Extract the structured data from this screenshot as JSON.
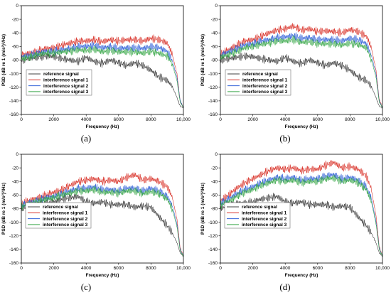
{
  "chart_data": [
    {
      "type": "line",
      "panel_label": "(a)",
      "xlabel": "Frequency (Hz)",
      "ylabel": "PSD (dB re 1 (m/s²)²/Hz)",
      "xlim": [
        0,
        10000
      ],
      "ylim": [
        -160,
        0
      ],
      "xticks": [
        "0",
        "2000",
        "4000",
        "6000",
        "8000",
        "10,000"
      ],
      "yticks": [
        "0",
        "-20",
        "-40",
        "-60",
        "-80",
        "-100",
        "-120",
        "-140",
        "-160"
      ],
      "legend_position": "left-middle",
      "series": [
        {
          "name": "reference signal",
          "color": "#404040",
          "x": [
            0,
            500,
            1000,
            1500,
            2000,
            2500,
            3000,
            3500,
            4000,
            4500,
            5000,
            5500,
            6000,
            6500,
            7000,
            7500,
            8000,
            8500,
            9000,
            9300,
            9600,
            9800,
            10000
          ],
          "y": [
            -80,
            -78,
            -76,
            -74,
            -75,
            -78,
            -80,
            -82,
            -76,
            -82,
            -85,
            -80,
            -84,
            -88,
            -84,
            -88,
            -95,
            -105,
            -110,
            -118,
            -135,
            -148,
            -150
          ]
        },
        {
          "name": "interference signal 1",
          "color": "#d9342b",
          "x": [
            0,
            500,
            1000,
            1500,
            2000,
            2500,
            3000,
            3500,
            4000,
            4500,
            5000,
            5500,
            6000,
            6500,
            7000,
            7500,
            8000,
            8500,
            9000,
            9300,
            9600,
            9800,
            10000
          ],
          "y": [
            -72,
            -70,
            -67,
            -63,
            -62,
            -58,
            -55,
            -52,
            -52,
            -50,
            -53,
            -50,
            -52,
            -50,
            -50,
            -52,
            -48,
            -50,
            -55,
            -70,
            -100,
            -140,
            -150
          ]
        },
        {
          "name": "interference signal 2",
          "color": "#3060d8",
          "x": [
            0,
            500,
            1000,
            1500,
            2000,
            2500,
            3000,
            3500,
            4000,
            4500,
            5000,
            5500,
            6000,
            6500,
            7000,
            7500,
            8000,
            8500,
            9000,
            9300,
            9600,
            9800,
            10000
          ],
          "y": [
            -75,
            -73,
            -70,
            -67,
            -67,
            -65,
            -63,
            -60,
            -60,
            -58,
            -62,
            -60,
            -63,
            -62,
            -62,
            -63,
            -60,
            -62,
            -67,
            -80,
            -105,
            -140,
            -150
          ]
        },
        {
          "name": "interference signal 3",
          "color": "#3aa84a",
          "x": [
            0,
            500,
            1000,
            1500,
            2000,
            2500,
            3000,
            3500,
            4000,
            4500,
            5000,
            5500,
            6000,
            6500,
            7000,
            7500,
            8000,
            8500,
            9000,
            9300,
            9600,
            9800,
            10000
          ],
          "y": [
            -78,
            -76,
            -72,
            -70,
            -70,
            -68,
            -67,
            -65,
            -66,
            -64,
            -68,
            -66,
            -68,
            -68,
            -68,
            -70,
            -67,
            -70,
            -74,
            -85,
            -110,
            -142,
            -150
          ]
        }
      ]
    },
    {
      "type": "line",
      "panel_label": "(b)",
      "xlabel": "Frequency (Hz)",
      "ylabel": "PSD (dB re 1 (m/s²)²/Hz)",
      "xlim": [
        0,
        10000
      ],
      "ylim": [
        -160,
        0
      ],
      "xticks": [
        "0",
        "2000",
        "4000",
        "6000",
        "8000",
        "10,000"
      ],
      "yticks": [
        "0",
        "-20",
        "-40",
        "-60",
        "-80",
        "-100",
        "-120",
        "-140",
        "-160"
      ],
      "legend_position": "left-middle",
      "series": [
        {
          "name": "reference signal",
          "color": "#404040",
          "x": [
            0,
            500,
            1000,
            1500,
            2000,
            2500,
            3000,
            3500,
            4000,
            4500,
            5000,
            5500,
            6000,
            6500,
            7000,
            7500,
            8000,
            8500,
            9000,
            9300,
            9600,
            9800,
            10000
          ],
          "y": [
            -80,
            -78,
            -76,
            -74,
            -75,
            -78,
            -80,
            -82,
            -76,
            -82,
            -85,
            -80,
            -84,
            -88,
            -84,
            -88,
            -95,
            -105,
            -110,
            -118,
            -135,
            -148,
            -150
          ]
        },
        {
          "name": "interference signal 1",
          "color": "#d9342b",
          "x": [
            0,
            500,
            1000,
            1500,
            2000,
            2500,
            3000,
            3500,
            4000,
            4500,
            5000,
            5500,
            6000,
            6500,
            7000,
            7500,
            8000,
            8500,
            9000,
            9300,
            9600,
            9800,
            10000
          ],
          "y": [
            -70,
            -65,
            -58,
            -52,
            -50,
            -45,
            -40,
            -36,
            -34,
            -30,
            -36,
            -34,
            -38,
            -37,
            -38,
            -40,
            -35,
            -38,
            -45,
            -60,
            -95,
            -138,
            -150
          ]
        },
        {
          "name": "interference signal 2",
          "color": "#3060d8",
          "x": [
            0,
            500,
            1000,
            1500,
            2000,
            2500,
            3000,
            3500,
            4000,
            4500,
            5000,
            5500,
            6000,
            6500,
            7000,
            7500,
            8000,
            8500,
            9000,
            9300,
            9600,
            9800,
            10000
          ],
          "y": [
            -73,
            -68,
            -63,
            -58,
            -56,
            -52,
            -50,
            -47,
            -46,
            -44,
            -48,
            -47,
            -50,
            -50,
            -50,
            -52,
            -48,
            -50,
            -56,
            -72,
            -100,
            -140,
            -150
          ]
        },
        {
          "name": "interference signal 3",
          "color": "#3aa84a",
          "x": [
            0,
            500,
            1000,
            1500,
            2000,
            2500,
            3000,
            3500,
            4000,
            4500,
            5000,
            5500,
            6000,
            6500,
            7000,
            7500,
            8000,
            8500,
            9000,
            9300,
            9600,
            9800,
            10000
          ],
          "y": [
            -76,
            -72,
            -68,
            -62,
            -60,
            -57,
            -55,
            -52,
            -52,
            -50,
            -54,
            -53,
            -56,
            -56,
            -56,
            -58,
            -55,
            -57,
            -62,
            -78,
            -105,
            -142,
            -150
          ]
        }
      ]
    },
    {
      "type": "line",
      "panel_label": "(c)",
      "xlabel": "Frequency (Hz)",
      "ylabel": "PSD (dB re 1 (m/s²)²/Hz)",
      "xlim": [
        0,
        10000
      ],
      "ylim": [
        -160,
        0
      ],
      "xticks": [
        "0",
        "2000",
        "4000",
        "6000",
        "8000",
        "10,000"
      ],
      "yticks": [
        "0",
        "-20",
        "-40",
        "-60",
        "-80",
        "-100",
        "-120",
        "-140",
        "-160"
      ],
      "legend_position": "bottom-right",
      "series": [
        {
          "name": "reference signal",
          "color": "#404040",
          "x": [
            0,
            500,
            1000,
            1500,
            2000,
            2500,
            3000,
            3500,
            4000,
            4500,
            5000,
            5500,
            6000,
            6500,
            7000,
            7500,
            8000,
            8500,
            9000,
            9300,
            9600,
            9800,
            10000
          ],
          "y": [
            -80,
            -76,
            -72,
            -72,
            -70,
            -66,
            -64,
            -62,
            -70,
            -72,
            -70,
            -74,
            -74,
            -74,
            -78,
            -76,
            -78,
            -92,
            -105,
            -115,
            -130,
            -145,
            -150
          ]
        },
        {
          "name": "interference signal 1",
          "color": "#d9342b",
          "x": [
            0,
            500,
            1000,
            1500,
            2000,
            2500,
            3000,
            3500,
            4000,
            4500,
            5000,
            5500,
            6000,
            6500,
            7000,
            7500,
            8000,
            8500,
            9000,
            9300,
            9600,
            9800,
            10000
          ],
          "y": [
            -72,
            -68,
            -64,
            -60,
            -56,
            -52,
            -46,
            -40,
            -38,
            -36,
            -40,
            -38,
            -40,
            -34,
            -30,
            -38,
            -36,
            -40,
            -48,
            -62,
            -95,
            -138,
            -150
          ]
        },
        {
          "name": "interference signal 2",
          "color": "#3060d8",
          "x": [
            0,
            500,
            1000,
            1500,
            2000,
            2500,
            3000,
            3500,
            4000,
            4500,
            5000,
            5500,
            6000,
            6500,
            7000,
            7500,
            8000,
            8500,
            9000,
            9300,
            9600,
            9800,
            10000
          ],
          "y": [
            -75,
            -71,
            -68,
            -64,
            -62,
            -58,
            -54,
            -50,
            -50,
            -48,
            -52,
            -52,
            -54,
            -50,
            -50,
            -54,
            -50,
            -54,
            -62,
            -75,
            -102,
            -140,
            -150
          ]
        },
        {
          "name": "interference signal 3",
          "color": "#3aa84a",
          "x": [
            0,
            500,
            1000,
            1500,
            2000,
            2500,
            3000,
            3500,
            4000,
            4500,
            5000,
            5500,
            6000,
            6500,
            7000,
            7500,
            8000,
            8500,
            9000,
            9300,
            9600,
            9800,
            10000
          ],
          "y": [
            -77,
            -73,
            -70,
            -66,
            -64,
            -60,
            -57,
            -54,
            -54,
            -52,
            -56,
            -56,
            -57,
            -54,
            -54,
            -58,
            -55,
            -58,
            -66,
            -80,
            -106,
            -142,
            -150
          ]
        }
      ]
    },
    {
      "type": "line",
      "panel_label": "(d)",
      "xlabel": "Frequency (Hz)",
      "ylabel": "PSD (dB re 1 (m/s²)²/Hz)",
      "xlim": [
        0,
        10000
      ],
      "ylim": [
        -160,
        0
      ],
      "xticks": [
        "0",
        "2000",
        "4000",
        "6000",
        "8000",
        "10,000"
      ],
      "yticks": [
        "0",
        "-20",
        "-40",
        "-60",
        "-80",
        "-100",
        "-120",
        "-140",
        "-160"
      ],
      "legend_position": "bottom-right",
      "series": [
        {
          "name": "reference signal",
          "color": "#404040",
          "x": [
            0,
            500,
            1000,
            1500,
            2000,
            2500,
            3000,
            3500,
            4000,
            4500,
            5000,
            5500,
            6000,
            6500,
            7000,
            7500,
            8000,
            8500,
            9000,
            9300,
            9600,
            9800,
            10000
          ],
          "y": [
            -80,
            -76,
            -72,
            -72,
            -70,
            -66,
            -64,
            -62,
            -70,
            -72,
            -70,
            -74,
            -74,
            -74,
            -78,
            -76,
            -78,
            -92,
            -105,
            -115,
            -130,
            -145,
            -150
          ]
        },
        {
          "name": "interference signal 1",
          "color": "#d9342b",
          "x": [
            0,
            500,
            1000,
            1500,
            2000,
            2500,
            3000,
            3500,
            4000,
            4500,
            5000,
            5500,
            6000,
            6500,
            7000,
            7500,
            8000,
            8500,
            9000,
            9300,
            9600,
            9800,
            10000
          ],
          "y": [
            -68,
            -60,
            -50,
            -42,
            -36,
            -30,
            -24,
            -20,
            -22,
            -20,
            -24,
            -22,
            -22,
            -16,
            -12,
            -20,
            -18,
            -22,
            -32,
            -50,
            -90,
            -136,
            -150
          ]
        },
        {
          "name": "interference signal 2",
          "color": "#3060d8",
          "x": [
            0,
            500,
            1000,
            1500,
            2000,
            2500,
            3000,
            3500,
            4000,
            4500,
            5000,
            5500,
            6000,
            6500,
            7000,
            7500,
            8000,
            8500,
            9000,
            9300,
            9600,
            9800,
            10000
          ],
          "y": [
            -72,
            -66,
            -58,
            -52,
            -48,
            -42,
            -38,
            -34,
            -36,
            -34,
            -38,
            -36,
            -36,
            -32,
            -30,
            -36,
            -34,
            -38,
            -48,
            -64,
            -98,
            -138,
            -150
          ]
        },
        {
          "name": "interference signal 3",
          "color": "#3aa84a",
          "x": [
            0,
            500,
            1000,
            1500,
            2000,
            2500,
            3000,
            3500,
            4000,
            4500,
            5000,
            5500,
            6000,
            6500,
            7000,
            7500,
            8000,
            8500,
            9000,
            9300,
            9600,
            9800,
            10000
          ],
          "y": [
            -75,
            -70,
            -62,
            -56,
            -52,
            -46,
            -42,
            -38,
            -40,
            -38,
            -42,
            -40,
            -40,
            -36,
            -35,
            -40,
            -38,
            -42,
            -52,
            -68,
            -102,
            -140,
            -150
          ]
        }
      ]
    }
  ]
}
